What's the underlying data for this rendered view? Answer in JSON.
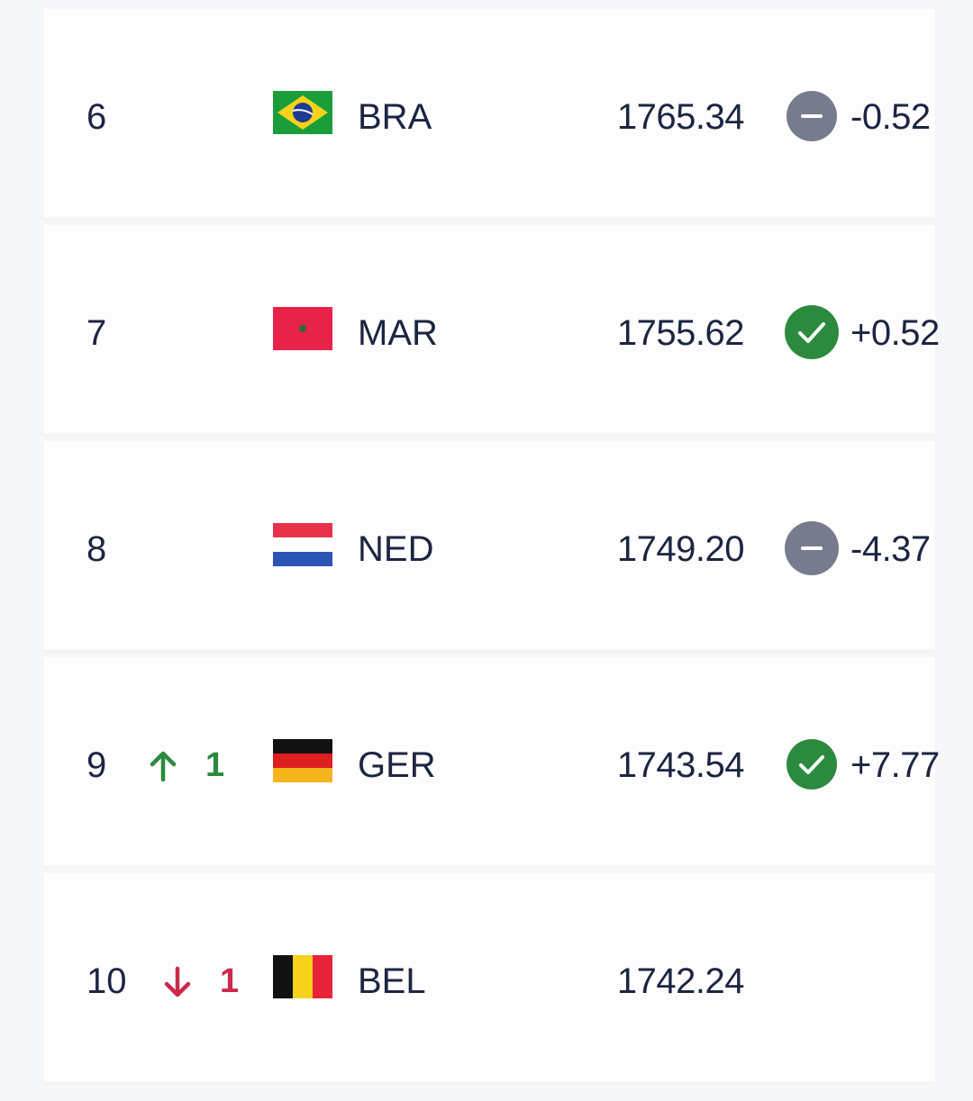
{
  "rows": [
    {
      "rank": "6",
      "team": "BRA",
      "points": "1765.34",
      "change": "-0.52"
    },
    {
      "rank": "7",
      "team": "MAR",
      "points": "1755.62",
      "change": "+0.52"
    },
    {
      "rank": "8",
      "team": "NED",
      "points": "1749.20",
      "change": "-4.37"
    },
    {
      "rank": "9",
      "movement": "1",
      "team": "GER",
      "points": "1743.54",
      "change": "+7.77"
    },
    {
      "rank": "10",
      "movement": "1",
      "team": "BEL",
      "points": "1742.24"
    }
  ]
}
